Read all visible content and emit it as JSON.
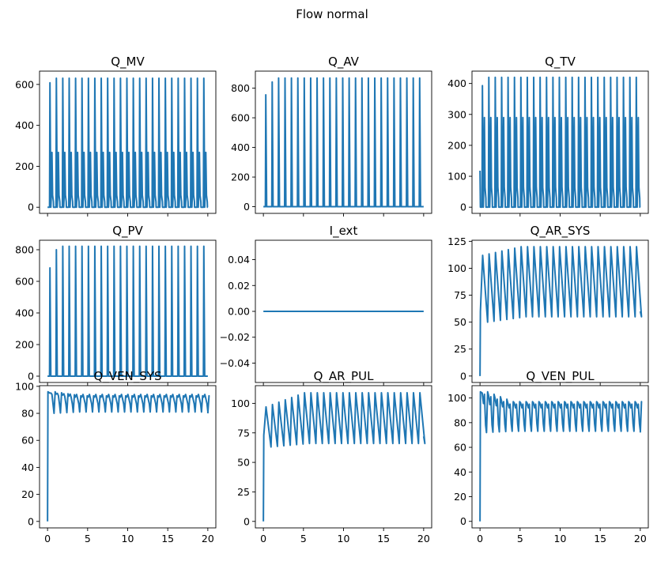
{
  "figure": {
    "suptitle": "Flow normal",
    "line_color": "#1f77b4"
  },
  "chart_data": [
    {
      "type": "line",
      "title": "Q_MV",
      "shape": "valve_double",
      "xlim": [
        -1,
        21
      ],
      "ylim": [
        -30,
        665
      ],
      "yticks": [
        0,
        200,
        400,
        600
      ],
      "yticklabels": [
        "0",
        "200",
        "400",
        "600"
      ],
      "xticks": [
        0,
        5,
        10,
        15,
        20
      ],
      "xticklabels": [],
      "x_period": 0.8,
      "x_range": [
        0,
        20
      ],
      "baseline": 0,
      "peak_values": [
        608,
        630
      ],
      "secondary_peak": 268
    },
    {
      "type": "line",
      "title": "Q_AV",
      "shape": "valve",
      "xlim": [
        -1,
        21
      ],
      "ylim": [
        -45,
        915
      ],
      "yticks": [
        0,
        200,
        400,
        600,
        800
      ],
      "yticklabels": [
        "0",
        "200",
        "400",
        "600",
        "800"
      ],
      "xticks": [
        0,
        5,
        10,
        15,
        20
      ],
      "xticklabels": [],
      "x_period": 0.8,
      "x_range": [
        0,
        20
      ],
      "baseline": 0,
      "peak_values": [
        755,
        842,
        868
      ]
    },
    {
      "type": "line",
      "title": "Q_TV",
      "shape": "valve_double",
      "xlim": [
        -1,
        21
      ],
      "ylim": [
        -20,
        440
      ],
      "yticks": [
        0,
        100,
        200,
        300,
        400
      ],
      "yticklabels": [
        "0",
        "100",
        "200",
        "300",
        "400"
      ],
      "xticks": [
        0,
        5,
        10,
        15,
        20
      ],
      "xticklabels": [],
      "x_period": 0.8,
      "x_range": [
        0,
        20
      ],
      "baseline": 0,
      "start_value": 118,
      "peak_values": [
        393,
        420
      ],
      "secondary_peak": 290
    },
    {
      "type": "line",
      "title": "Q_PV",
      "shape": "valve",
      "xlim": [
        -1,
        21
      ],
      "ylim": [
        -40,
        860
      ],
      "yticks": [
        0,
        200,
        400,
        600,
        800
      ],
      "yticklabels": [
        "0",
        "200",
        "400",
        "600",
        "800"
      ],
      "xticks": [
        0,
        5,
        10,
        15,
        20
      ],
      "xticklabels": [],
      "x_period": 0.8,
      "x_range": [
        0,
        20
      ],
      "baseline": 0,
      "peak_values": [
        685,
        800,
        822
      ]
    },
    {
      "type": "line",
      "title": "I_ext",
      "shape": "flat",
      "xlim": [
        -1,
        21
      ],
      "ylim": [
        -0.055,
        0.055
      ],
      "yticks": [
        0.04,
        0.02,
        0.0,
        -0.02,
        -0.04
      ],
      "yticklabels": [
        "0.04",
        "0.02",
        "0.00",
        "−0.02",
        "−0.04"
      ],
      "xticks": [
        0,
        5,
        10,
        15,
        20
      ],
      "xticklabels": [],
      "x_range": [
        0,
        20
      ],
      "value": 0
    },
    {
      "type": "line",
      "title": "Q_AR_SYS",
      "shape": "sawtooth",
      "xlim": [
        -1,
        21
      ],
      "ylim": [
        -6,
        126
      ],
      "yticks": [
        0,
        25,
        50,
        75,
        100,
        125
      ],
      "yticklabels": [
        "0",
        "25",
        "50",
        "75",
        "100",
        "125"
      ],
      "xticks": [
        0,
        5,
        10,
        15,
        20
      ],
      "xticklabels": [],
      "x_period": 0.8,
      "x_range": [
        0,
        20
      ],
      "start_value": 0,
      "peak_values": [
        112,
        120
      ],
      "trough_values": [
        50,
        55
      ],
      "end_value": 60
    },
    {
      "type": "line",
      "title": "Q_VEN_SYS",
      "shape": "oscillating",
      "xlim": [
        -1,
        21
      ],
      "ylim": [
        -4.8,
        100.5
      ],
      "yticks": [
        0,
        20,
        40,
        60,
        80,
        100
      ],
      "yticklabels": [
        "0",
        "20",
        "40",
        "60",
        "80",
        "100"
      ],
      "xticks": [
        0,
        5,
        10,
        15,
        20
      ],
      "xticklabels": [
        "0",
        "5",
        "10",
        "15",
        "20"
      ],
      "x_period": 0.8,
      "x_range": [
        0,
        20
      ],
      "start_value": 0,
      "peak_values": [
        96,
        93
      ],
      "trough_values": [
        80,
        81
      ],
      "end_value": 80
    },
    {
      "type": "line",
      "title": "Q_AR_PUL",
      "shape": "sawtooth",
      "xlim": [
        -1,
        21
      ],
      "ylim": [
        -5.5,
        115
      ],
      "yticks": [
        0,
        25,
        50,
        75,
        100
      ],
      "yticklabels": [
        "0",
        "25",
        "50",
        "75",
        "100"
      ],
      "xticks": [
        0,
        5,
        10,
        15,
        20
      ],
      "xticklabels": [
        "0",
        "5",
        "10",
        "15",
        "20"
      ],
      "x_period": 0.8,
      "x_range": [
        0,
        20
      ],
      "start_value": 0,
      "peak_values": [
        97,
        109
      ],
      "trough_values": [
        63,
        66
      ],
      "end_value": 72
    },
    {
      "type": "line",
      "title": "Q_VEN_PUL",
      "shape": "oscillating",
      "xlim": [
        -1,
        21
      ],
      "ylim": [
        -5.3,
        110
      ],
      "yticks": [
        0,
        20,
        40,
        60,
        80,
        100
      ],
      "yticklabels": [
        "0",
        "20",
        "40",
        "60",
        "80",
        "100"
      ],
      "xticks": [
        0,
        5,
        10,
        15,
        20
      ],
      "xticklabels": [
        "0",
        "5",
        "10",
        "15",
        "20"
      ],
      "x_period": 0.8,
      "x_range": [
        0,
        20
      ],
      "start_value": 0,
      "peak_values": [
        105,
        97
      ],
      "trough_values": [
        72,
        73
      ],
      "end_value": 72
    }
  ]
}
